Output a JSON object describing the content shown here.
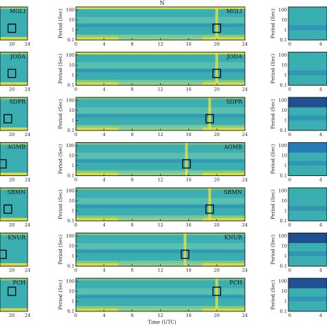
{
  "figure": {
    "component_label": "N",
    "xlabel": "Time (UTC)",
    "ylabel": "Period (Sec)"
  },
  "chart_data": {
    "type": "heatmap",
    "title": "N",
    "xlabel": "Time (UTC)",
    "ylabel": "Period (Sec)",
    "x_ticks": [
      "0",
      "4",
      "8",
      "12",
      "16",
      "20",
      "24"
    ],
    "xlim": [
      0,
      24
    ],
    "y_scale": "log",
    "y_ticks": [
      "0.1",
      "1",
      "10",
      "100"
    ],
    "ylim": [
      0.1,
      200
    ],
    "left_x_ticks": [
      "20",
      "24"
    ],
    "right_x_ticks": [
      "0",
      "4"
    ],
    "panels": [
      {
        "station": "MGLI",
        "box_time": 20.0,
        "box_period": 1.5,
        "right_band": "light"
      },
      {
        "station": "JODA",
        "box_time": 20.0,
        "box_period": 1.5,
        "right_band": "light"
      },
      {
        "station": "SDPR",
        "box_time": 19.0,
        "box_period": 1.5,
        "right_band": "dark"
      },
      {
        "station": "AGMB",
        "box_time": 15.7,
        "box_period": 1.5,
        "right_band": "mid"
      },
      {
        "station": "SBMN",
        "box_time": 19.0,
        "box_period": 1.5,
        "right_band": "light"
      },
      {
        "station": "KNUR",
        "box_time": 15.5,
        "box_period": 1.5,
        "right_band": "dark"
      },
      {
        "station": "PCH",
        "box_time": 20.0,
        "box_period": 10,
        "right_band": "dark"
      }
    ]
  },
  "colors": {
    "field": "#3aaeb0",
    "field_light": "#68c4b2",
    "high": "#f0e33a",
    "mid": "#8fd07a",
    "low": "#2373b8",
    "dark": "#1c3f8c",
    "box": "#000000"
  }
}
